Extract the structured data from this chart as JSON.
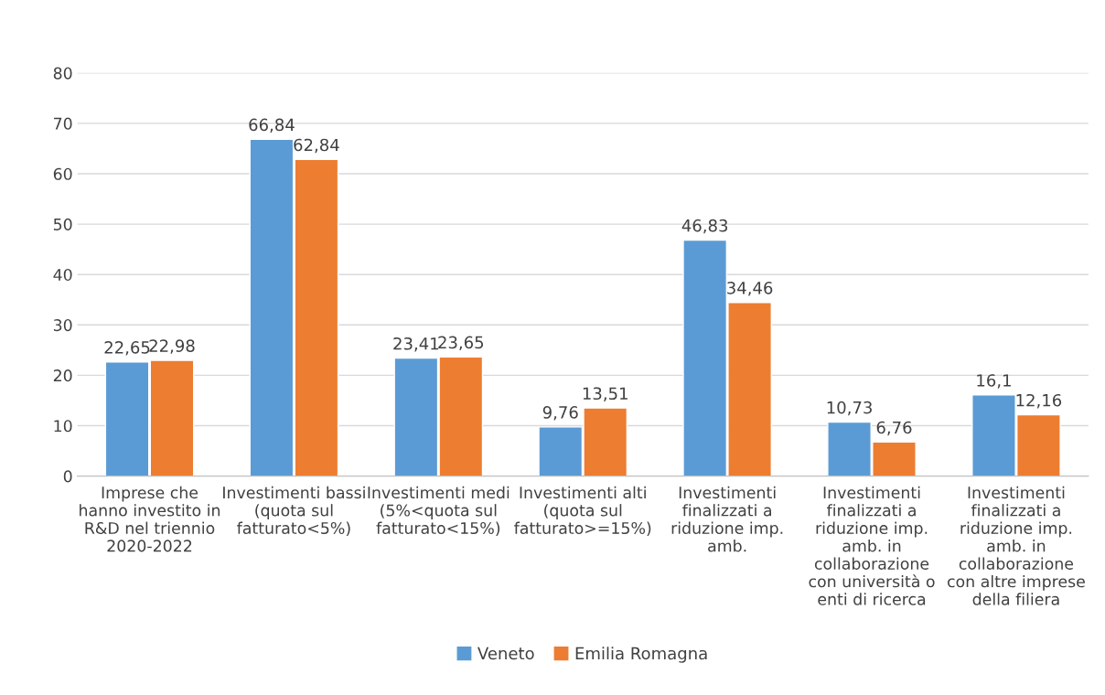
{
  "chart_data": {
    "type": "bar",
    "categories": [
      "Imprese che\nhanno investito in\nR&D nel triennio\n2020-2022",
      "Investimenti bassi\n(quota sul\nfatturato<5%)",
      "Investimenti medi\n(5%<quota sul\nfatturato<15%)",
      "Investimenti alti\n(quota sul\nfatturato>=15%)",
      "Investimenti\nfinalizzati a\nriduzione imp.\namb.",
      "Investimenti\nfinalizzati a\nriduzione imp.\namb. in\ncollaborazione\ncon università o\nenti di ricerca",
      "Investimenti\nfinalizzati a\nriduzione imp.\namb. in\ncollaborazione\ncon altre imprese\ndella filiera"
    ],
    "series": [
      {
        "name": "Veneto",
        "color": "#5b9bd5",
        "values": [
          22.65,
          66.84,
          23.41,
          9.76,
          46.83,
          10.73,
          16.1
        ],
        "value_labels": [
          "22,65",
          "66,84",
          "23,41",
          "9,76",
          "46,83",
          "10,73",
          "16,1"
        ]
      },
      {
        "name": "Emilia Romagna",
        "color": "#ed7d31",
        "values": [
          22.98,
          62.84,
          23.65,
          13.51,
          34.46,
          6.76,
          12.16
        ],
        "value_labels": [
          "22,98",
          "62,84",
          "23,65",
          "13,51",
          "34,46",
          "6,76",
          "12,16"
        ]
      }
    ],
    "ylim": [
      0,
      80
    ],
    "yticks": [
      0,
      10,
      20,
      30,
      40,
      50,
      60,
      70,
      80
    ],
    "grid": "y",
    "legend": "bottom"
  }
}
